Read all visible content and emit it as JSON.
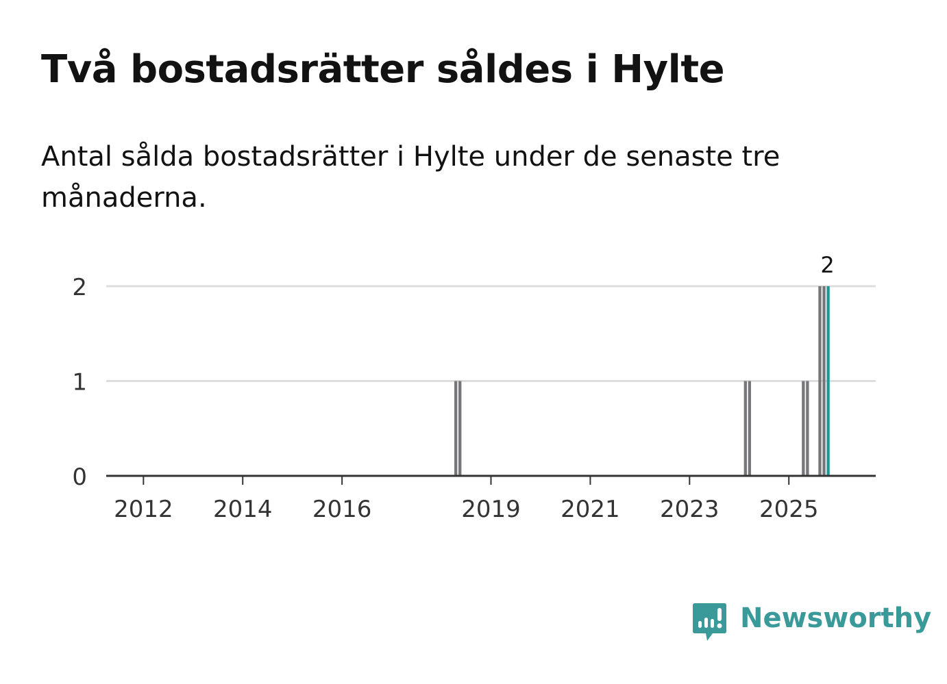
{
  "title": "Två bostadsrätter såldes i Hylte",
  "subtitle": "Antal sålda bostadsrätter i Hylte under de senaste tre månaderna.",
  "brand": {
    "name": "Newsworthy",
    "icon": "newsworthy-logo-icon",
    "color": "#3a9a9a"
  },
  "chart_data": {
    "type": "bar",
    "title": "",
    "xlabel": "",
    "ylabel": "",
    "xlim": [
      "2011-04",
      "2026-10"
    ],
    "ylim": [
      0,
      2
    ],
    "yticks": [
      "0",
      "1",
      "2"
    ],
    "xticks": [
      "2012",
      "2014",
      "2016",
      "2019",
      "2021",
      "2023",
      "2025"
    ],
    "grid": true,
    "legend": "none",
    "colors": {
      "bar": "#77767a",
      "highlight": "#1a9a97",
      "grid": "#dddddd",
      "axis": "#333333",
      "text": "#333333"
    },
    "x": [
      "2018-04",
      "2018-05",
      "2024-02",
      "2024-03",
      "2025-04",
      "2025-05",
      "2025-08",
      "2025-09",
      "2025-10"
    ],
    "values": [
      1,
      1,
      1,
      1,
      1,
      1,
      2,
      2,
      2
    ],
    "highlight_index": 8,
    "data_labels": [
      {
        "x": "2025-10",
        "text": "2"
      }
    ]
  }
}
